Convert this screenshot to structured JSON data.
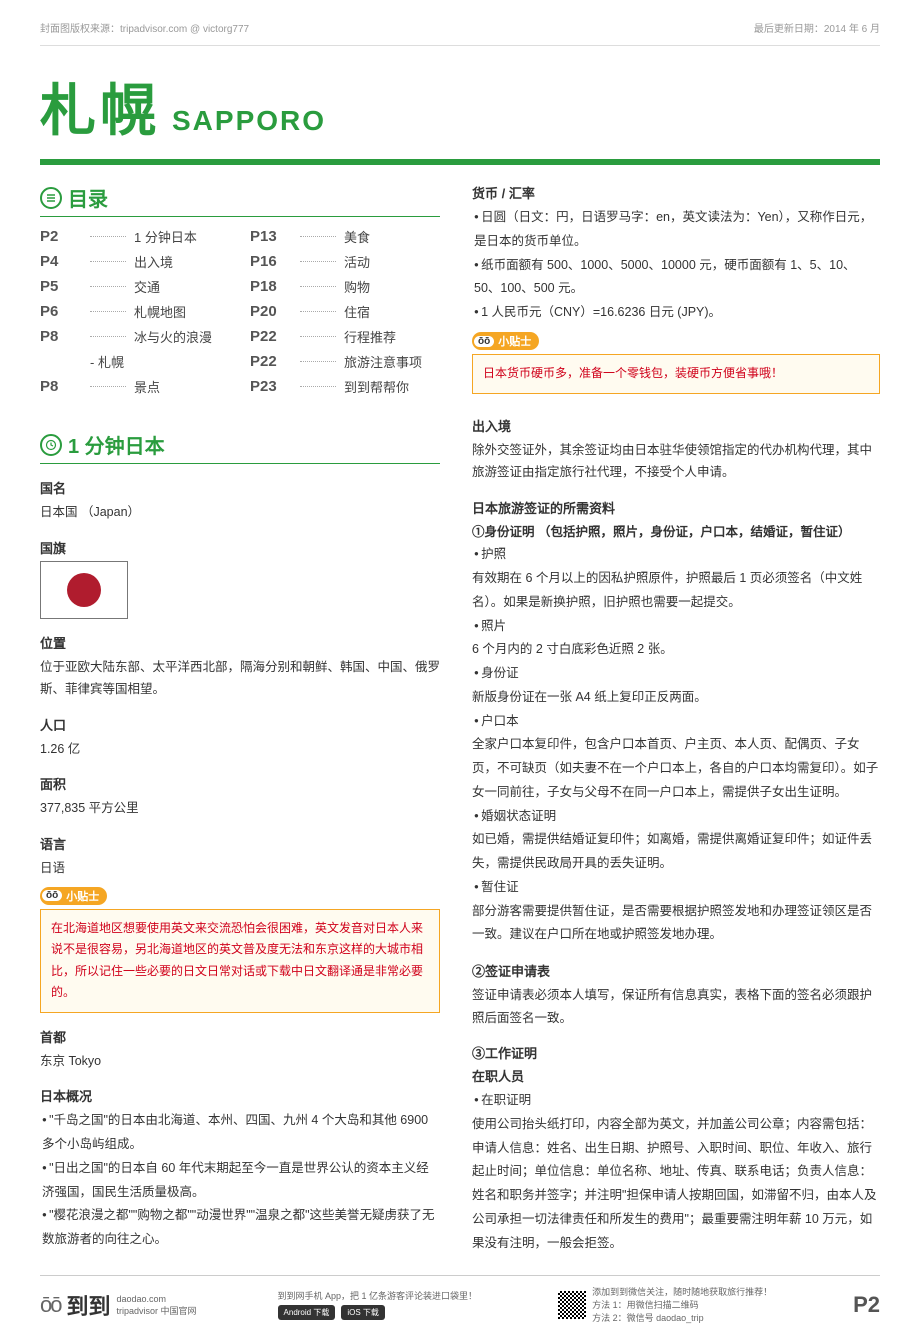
{
  "header": {
    "copyright": "封面图版权来源：tripadvisor.com @ victorg777",
    "updated": "最后更新日期：2014 年 6 月",
    "title_cn": "札幌",
    "title_en": "SAPPORO"
  },
  "sections": {
    "toc_title": "目录",
    "minute_title": "1 分钟日本"
  },
  "toc_left": [
    {
      "page": "P2",
      "label": "1 分钟日本"
    },
    {
      "page": "P4",
      "label": "出入境"
    },
    {
      "page": "P5",
      "label": "交通"
    },
    {
      "page": "P6",
      "label": "札幌地图"
    },
    {
      "page": "P8",
      "label": "冰与火的浪漫",
      "sub": "- 札幌"
    },
    {
      "page": "P8",
      "label": "景点"
    }
  ],
  "toc_right": [
    {
      "page": "P13",
      "label": "美食"
    },
    {
      "page": "P16",
      "label": "活动"
    },
    {
      "page": "P18",
      "label": "购物"
    },
    {
      "page": "P20",
      "label": "住宿"
    },
    {
      "page": "P22",
      "label": "行程推荐"
    },
    {
      "page": "P22",
      "label": "旅游注意事项"
    },
    {
      "page": "P23",
      "label": "到到帮帮你"
    }
  ],
  "japan": {
    "name_h": "国名",
    "name_v": "日本国 （Japan）",
    "flag_h": "国旗",
    "loc_h": "位置",
    "loc_v": "位于亚欧大陆东部、太平洋西北部，隔海分别和朝鲜、韩国、中国、俄罗斯、菲律宾等国相望。",
    "pop_h": "人口",
    "pop_v": "1.26 亿",
    "area_h": "面积",
    "area_v": "377,835 平方公里",
    "lang_h": "语言",
    "lang_v": "日语",
    "tip_label": "小贴士",
    "lang_tip": "在北海道地区想要使用英文来交流恐怕会很困难，英文发音对日本人来说不是很容易，另北海道地区的英文普及度无法和东京这样的大城市相比，所以记住一些必要的日文日常对话或下载中日文翻译通是非常必要的。",
    "cap_h": "首都",
    "cap_v": "东京 Tokyo",
    "over_h": "日本概况",
    "over_1": "\"千岛之国\"的日本由北海道、本州、四国、九州 4 个大岛和其他 6900 多个小岛屿组成。",
    "over_2": "\"日出之国\"的日本自 60 年代末期起至今一直是世界公认的资本主义经济强国，国民生活质量极高。",
    "over_3": "\"樱花浪漫之都\"\"购物之都\"\"动漫世界\"\"温泉之都\"这些美誉无疑虏获了无数旅游者的向往之心。"
  },
  "currency": {
    "h": "货币 / 汇率",
    "l1": "日圆（日文：円，日语罗马字：en，英文读法为：Yen），又称作日元，是日本的货币单位。",
    "l2": "纸币面额有 500、1000、5000、10000 元，硬币面额有 1、5、10、50、100、500 元。",
    "l3": "1 人民币元（CNY）=16.6236 日元 (JPY)。",
    "tip": "日本货币硬币多，准备一个零钱包，装硬币方便省事哦！"
  },
  "entry": {
    "h": "出入境",
    "intro": "除外交签证外，其余签证均由日本驻华使领馆指定的代办机构代理，其中旅游签证由指定旅行社代理，不接受个人申请。",
    "req_h": "日本旅游签证的所需资料",
    "id_h": "①身份证明 （包括护照，照片，身份证，户口本，结婚证，暂住证）",
    "passport_b": "护照",
    "passport_t": "有效期在 6 个月以上的因私护照原件，护照最后 1 页必须签名（中文姓名）。如果是新换护照，旧护照也需要一起提交。",
    "photo_b": "照片",
    "photo_t": "6 个月内的 2 寸白底彩色近照 2 张。",
    "idcard_b": "身份证",
    "idcard_t": "新版身份证在一张 A4 纸上复印正反两面。",
    "hukou_b": "户口本",
    "hukou_t": "全家户口本复印件，包含户口本首页、户主页、本人页、配偶页、子女页，不可缺页（如夫妻不在一个户口本上，各自的户口本均需复印）。如子女一同前往，子女与父母不在同一户口本上，需提供子女出生证明。",
    "marriage_b": "婚姻状态证明",
    "marriage_t": "如已婚，需提供结婚证复印件；如离婚，需提供离婚证复印件；如证件丢失，需提供民政局开具的丢失证明。",
    "temp_b": "暂住证",
    "temp_t": "部分游客需要提供暂住证，是否需要根据护照签发地和办理签证领区是否一致。建议在户口所在地或护照签发地办理。",
    "form_h": "②签证申请表",
    "form_t": "签证申请表必须本人填写，保证所有信息真实，表格下面的签名必须跟护照后面签名一致。",
    "work_h": "③工作证明",
    "emp_h": "在职人员",
    "emp_b": "在职证明",
    "emp_t": "使用公司抬头纸打印，内容全部为英文，并加盖公司公章；内容需包括：申请人信息：姓名、出生日期、护照号、入职时间、职位、年收入、旅行起止时间；单位信息：单位名称、地址、传真、联系电话；负责人信息：姓名和职务并签字；并注明\"担保申请人按期回国，如滞留不归，由本人及公司承担一切法律责任和所发生的费用\"；最重要需注明年薪 10 万元，如果没有注明，一般会拒签。"
  },
  "footer": {
    "brand": "到到",
    "brand_sub1": "daodao.com",
    "brand_sub2": "tripadvisor 中国官网",
    "app_line": "到到网手机 App，把 1 亿条游客评论装进口袋里！",
    "btn1": "Android 下载",
    "btn2": "iOS 下载",
    "wechat1": "添加到到微信关注，随时随地获取旅行推荐！",
    "wechat2": "方法 1：用微信扫描二维码",
    "wechat3": "方法 2：微信号 daodao_trip",
    "page": "P2"
  },
  "colors": {
    "brand_green": "#2a9c3e",
    "tip_orange": "#f5a623",
    "tip_red": "#d0021b",
    "flag_red": "#b01c2e"
  }
}
